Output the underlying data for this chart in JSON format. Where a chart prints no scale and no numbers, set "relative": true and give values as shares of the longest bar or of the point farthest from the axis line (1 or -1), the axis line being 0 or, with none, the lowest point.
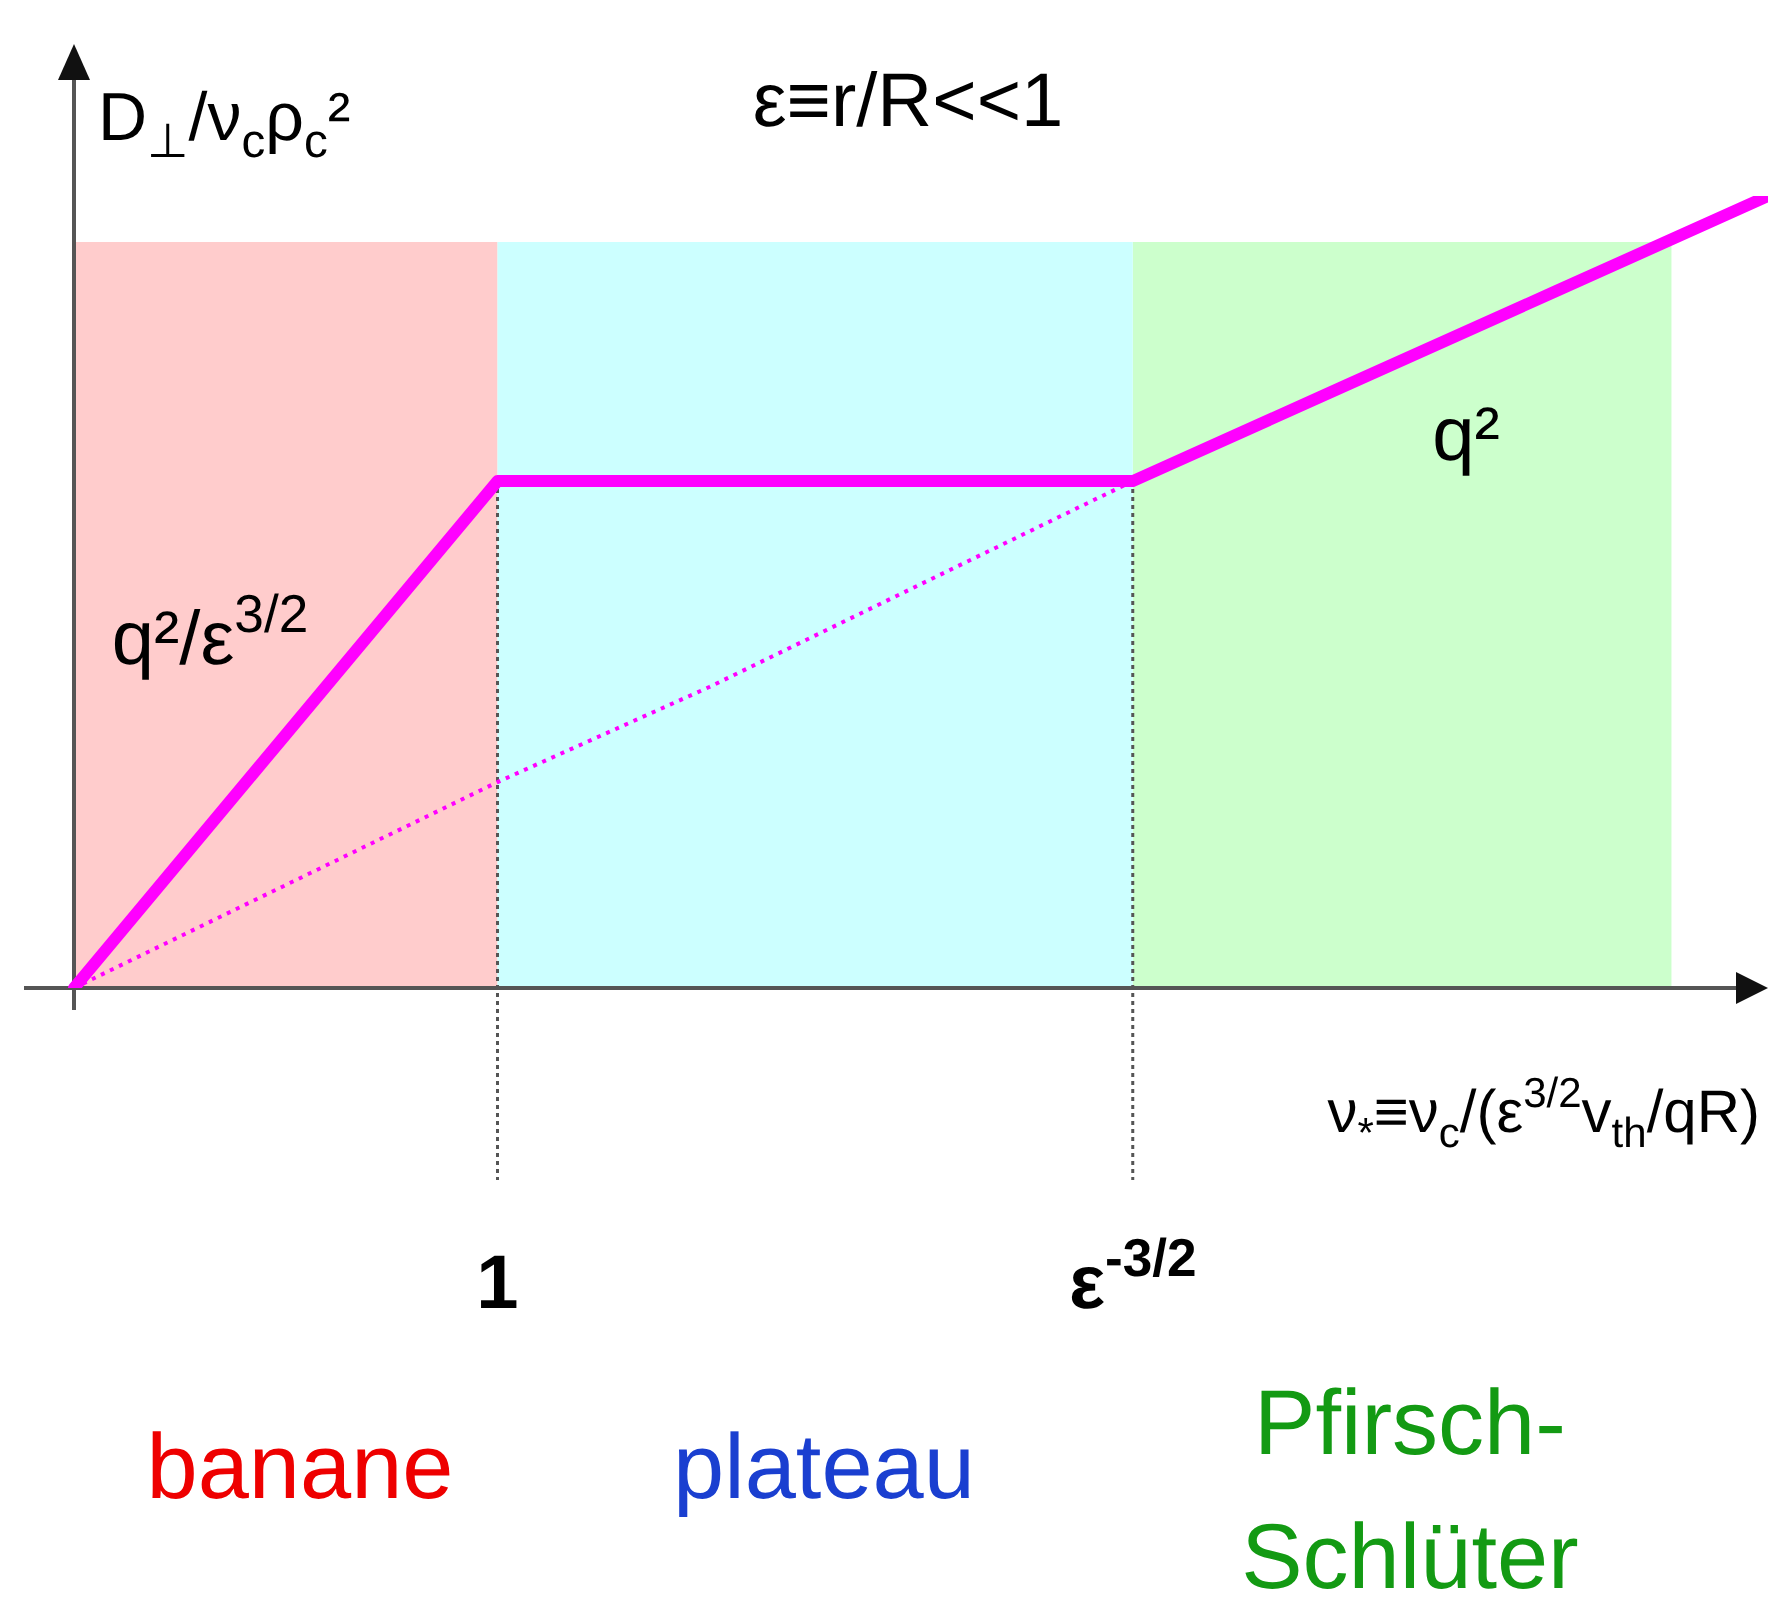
{
  "chart_data": {
    "type": "line",
    "title": "ε≡r/R<<1",
    "xlabel": "ν$_{*}$≡ν$_{c}$/(ε$^{3/2}$v$_{th}$/qR)",
    "ylabel": "D$_{⊥}$/ν$_{c}$ρ$_{c}$²",
    "relative": true,
    "categories": [
      null,
      null,
      "1",
      null,
      null,
      "ε$^{-3/2}$",
      null,
      null,
      null
    ],
    "series": [
      {
        "color": "#ff00ff",
        "values": [
          0,
          0.32,
          0.64,
          0.64,
          0.64,
          0.64,
          0.76,
          0.88,
          1
        ]
      },
      {
        "color": "#ff00ff",
        "values": [
          0,
          0.13,
          0.26,
          0.38,
          0.51,
          0.64,
          null,
          null,
          null
        ],
        "line_style": "dotted"
      }
    ],
    "bands": [
      {
        "axis": "x",
        "from": "1",
        "to": "ε$^{-3/2}$",
        "color": "#ccffff"
      }
    ],
    "annotations": [
      "q²/ε$^{3/2}$",
      "q²",
      "banane",
      "plateau",
      "Pfirsch-Schlüter"
    ],
    "grid": "x"
  }
}
